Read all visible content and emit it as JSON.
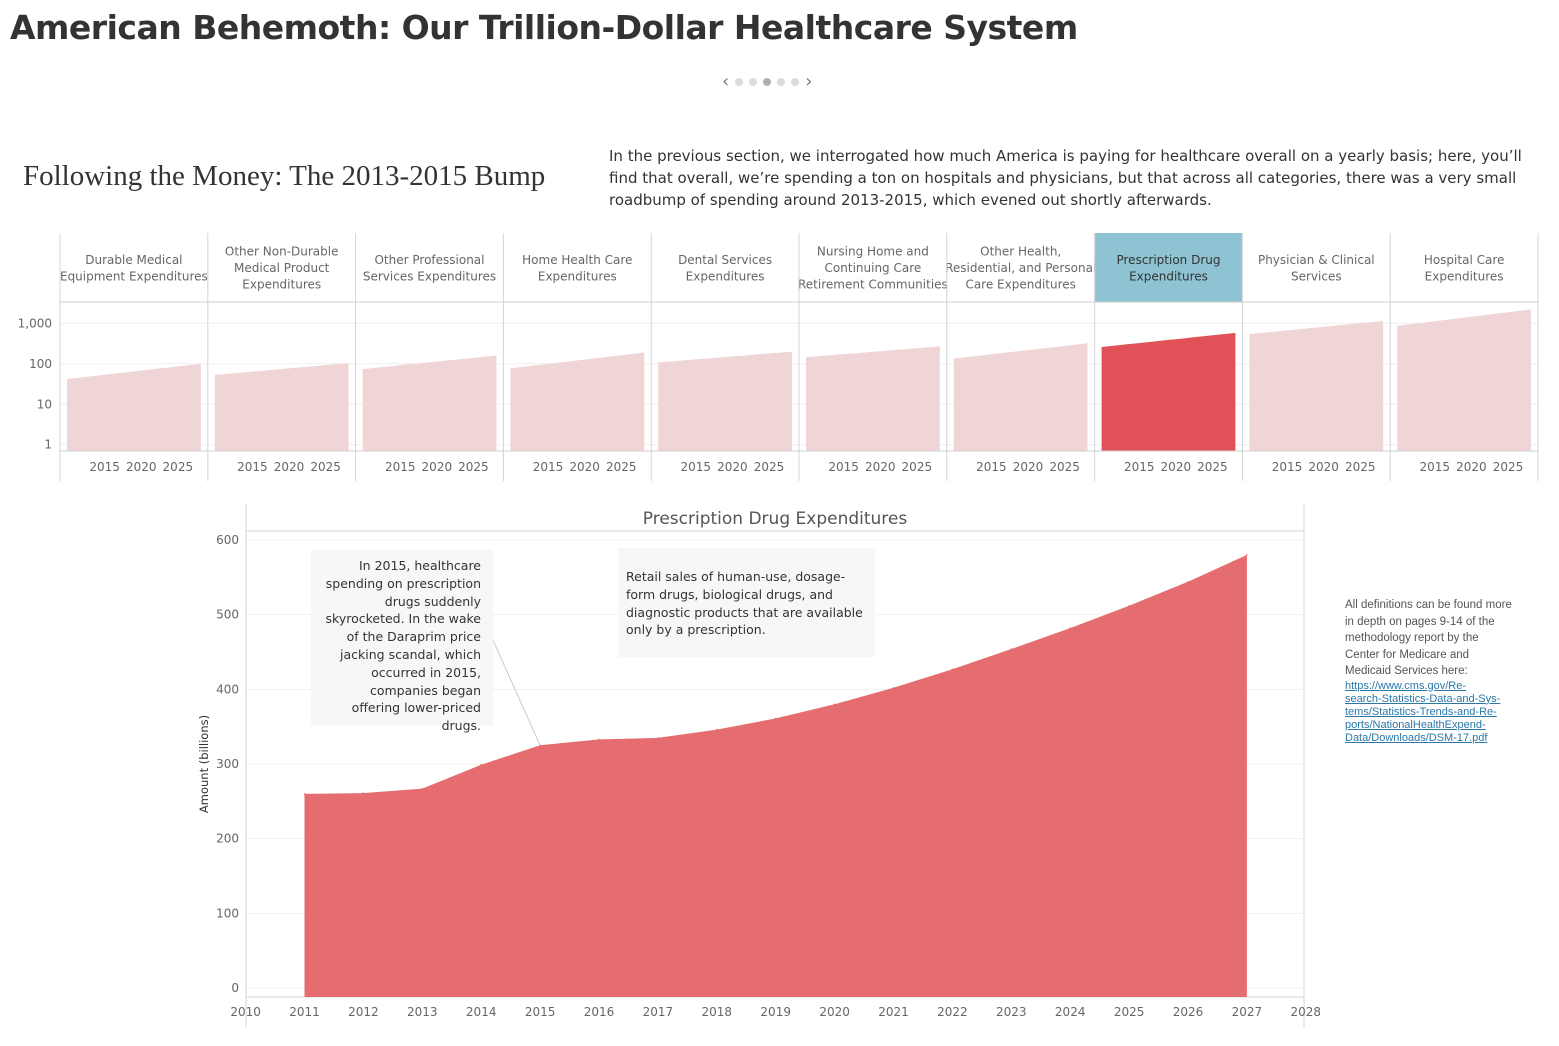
{
  "page": {
    "title": "American Behemoth: Our Trillion-Dollar Healthcare System",
    "section_title": "Following the Money: The 2013-2015 Bump",
    "intro": "In the previous section, we interrogated how much America is paying for healthcare overall on a yearly basis; here, you’ll find that overall, we’re spending a ton on hospitals and physicians, but that across all categories, there was a very small roadbump of spending around 2013-2015, which evened out shortly afterwards.",
    "pager": {
      "prev": "‹",
      "next": "›",
      "dot_count": 5,
      "active_dot": 2
    },
    "side_note": {
      "text": "All definitions can be found more in depth on pages 9-14 of the methodology report by the Center for Medicare and Medicaid Services here:",
      "link": "https://www.cms.gov/Research-Statistics-Data-and-Systems/Statistics-Trends-and-Reports/NationalHealthExpendData/Downloads/DSM-17.pdf",
      "link_lines": [
        "https://www.cms.gov/Re-",
        "search-Statistics-Data-and-Sys-",
        "tems/Statistics-Trends-and-Re-",
        "ports/NationalHealthExpend-",
        "Data/Downloads/DSM-17.pdf"
      ]
    }
  },
  "colors": {
    "highlight_header": "#8ec3d3",
    "area_highlight": "#e05257",
    "area_faded": "#f0d5d7",
    "main_area": "#e56d70",
    "note_bg": "#f7f7f7"
  },
  "chart_data": [
    {
      "type": "area",
      "kind": "small-multiples",
      "scale": "log",
      "y_ticks": [
        "1,000",
        "100",
        "10",
        "1"
      ],
      "y_tick_values": [
        1000,
        100,
        10,
        1
      ],
      "x_ticks": [
        "2015",
        "2020",
        "2025"
      ],
      "x_tick_values": [
        2015,
        2020,
        2025
      ],
      "x_domain": [
        2010,
        2028
      ],
      "y_domain": [
        0.7,
        3000
      ],
      "selected": "Prescription Drug Expenditures",
      "categories": [
        {
          "label": "Durable Medical Equipment Expenditures",
          "label_lines": [
            "Durable Medical",
            "Equipment Expenditures"
          ],
          "start": 42,
          "end": 100
        },
        {
          "label": "Other Non-Durable Medical Product Expenditures",
          "label_lines": [
            "Other Non-Durable",
            "Medical Product",
            "Expenditures"
          ],
          "start": 53,
          "end": 104
        },
        {
          "label": "Other Professional Services Expenditures",
          "label_lines": [
            "Other Professional",
            "Services Expenditures"
          ],
          "start": 74,
          "end": 160
        },
        {
          "label": "Home Health Care Expenditures",
          "label_lines": [
            "Home Health Care",
            "Expenditures"
          ],
          "start": 77,
          "end": 190
        },
        {
          "label": "Dental Services Expenditures",
          "label_lines": [
            "Dental Services",
            "Expenditures"
          ],
          "start": 108,
          "end": 200
        },
        {
          "label": "Nursing Home and Continuing Care Retirement Communities",
          "label_lines": [
            "Nursing Home and",
            "Continuing Care",
            "Retirement Communities"
          ],
          "start": 145,
          "end": 270
        },
        {
          "label": "Other Health, Residential, and Personal Care Expenditures",
          "label_lines": [
            "Other Health,",
            "Residential, and Personal",
            "Care Expenditures"
          ],
          "start": 135,
          "end": 320
        },
        {
          "label": "Prescription Drug Expenditures",
          "label_lines": [
            "Prescription Drug",
            "Expenditures"
          ],
          "start": 260,
          "end": 580,
          "highlight": true
        },
        {
          "label": "Physician & Clinical Services",
          "label_lines": [
            "Physician & Clinical",
            "Services"
          ],
          "start": 540,
          "end": 1150
        },
        {
          "label": "Hospital Care Expenditures",
          "label_lines": [
            "Hospital Care",
            "Expenditures"
          ],
          "start": 870,
          "end": 2200
        }
      ]
    },
    {
      "type": "area",
      "title": "Prescription Drug Expenditures",
      "xlabel": "",
      "ylabel": "Amount (billions)",
      "x_axis_ticks": [
        2010,
        2011,
        2012,
        2013,
        2014,
        2015,
        2016,
        2017,
        2018,
        2019,
        2020,
        2021,
        2022,
        2023,
        2024,
        2025,
        2026,
        2027,
        2028
      ],
      "x": [
        2011,
        2012,
        2013,
        2014,
        2015,
        2016,
        2017,
        2018,
        2019,
        2020,
        2021,
        2022,
        2023,
        2024,
        2025,
        2026,
        2027
      ],
      "values": [
        260,
        261,
        267,
        299,
        325,
        333,
        335,
        346,
        361,
        380,
        402,
        427,
        454,
        482,
        512,
        544,
        580
      ],
      "y_ticks": [
        0,
        100,
        200,
        300,
        400,
        500,
        600
      ],
      "ylim": [
        -12,
        612
      ],
      "annotations": [
        {
          "text": "In 2015, healthcare spending on prescription drugs suddenly skyrocketed. In the wake of the Daraprim price jacking scandal, which occurred in 2015, companies began offering lower-priced drugs.",
          "year": 2015
        },
        {
          "text": "Retail sales of human-use, dosage-form drugs, biological drugs, and diagnostic products that are available only by a prescription."
        }
      ]
    }
  ]
}
